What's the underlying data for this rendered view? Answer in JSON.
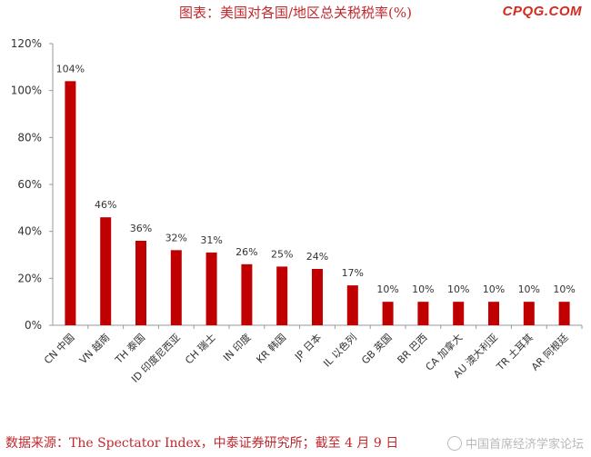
{
  "header": {
    "title": "图表：美国对各国/地区总关税税率(%)",
    "brand": "CPQG.COM"
  },
  "footer": {
    "source": "数据来源：The Spectator Index，中泰证券研究所；截至 4 月 9 日",
    "watermark": "中国首席经济学家论坛"
  },
  "colors": {
    "bar": "#c00000",
    "axis": "#9a9a9a",
    "text": "#333333"
  },
  "chart_data": {
    "type": "bar",
    "categories": [
      "CN 中国",
      "VN 越南",
      "TH 泰国",
      "ID 印度尼西亚",
      "CH 瑞士",
      "IN 印度",
      "KR 韩国",
      "JP 日本",
      "IL 以色列",
      "GB 英国",
      "BR 巴西",
      "CA 加拿大",
      "AU 澳大利亚",
      "TR 土耳其",
      "AR 阿根廷"
    ],
    "values": [
      104,
      46,
      36,
      32,
      31,
      26,
      25,
      24,
      17,
      10,
      10,
      10,
      10,
      10,
      10
    ],
    "data_labels": [
      "104%",
      "46%",
      "36%",
      "32%",
      "31%",
      "26%",
      "25%",
      "24%",
      "17%",
      "10%",
      "10%",
      "10%",
      "10%",
      "10%",
      "10%"
    ],
    "ylim": [
      0,
      120
    ],
    "yticks": [
      "0%",
      "20%",
      "40%",
      "60%",
      "80%",
      "100%",
      "120%"
    ],
    "grid": false,
    "xlabel": "",
    "ylabel": ""
  }
}
